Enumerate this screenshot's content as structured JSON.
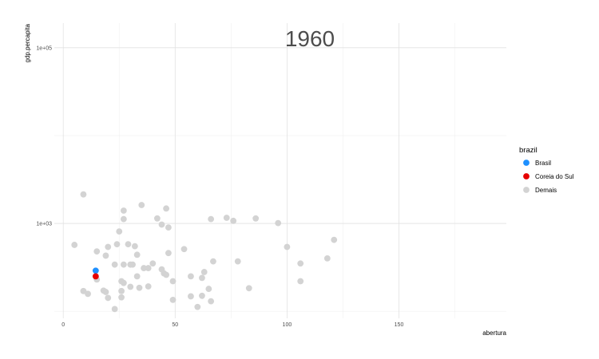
{
  "chart_data": {
    "type": "scatter",
    "title": "1960",
    "xlabel": "abertura",
    "ylabel": "gdp.percapita",
    "xlim": [
      -4,
      198
    ],
    "ylim_log10": [
      1.92,
      5.28
    ],
    "y_scale": "log10",
    "x_ticks": [
      {
        "value": 0,
        "label": "0"
      },
      {
        "value": 50,
        "label": "50"
      },
      {
        "value": 100,
        "label": "100"
      },
      {
        "value": 150,
        "label": "150"
      }
    ],
    "y_ticks": [
      {
        "value": 1000,
        "label": "1e+03"
      },
      {
        "value": 100000,
        "label": "1e+05"
      }
    ],
    "grid": true,
    "legend": {
      "title": "brazil",
      "position": "right",
      "entries": [
        {
          "label": "Brasil",
          "color": "#1E90FF"
        },
        {
          "label": "Coreia do Sul",
          "color": "#E60000"
        },
        {
          "label": "Demais",
          "color": "#D3D3D3"
        }
      ]
    },
    "series": [
      {
        "name": "Demais",
        "color": "#D3D3D3",
        "points": [
          [
            9,
            2140
          ],
          [
            35,
            1620
          ],
          [
            46,
            1480
          ],
          [
            27,
            1400
          ],
          [
            42,
            1140
          ],
          [
            27,
            1120
          ],
          [
            44,
            970
          ],
          [
            66,
            1120
          ],
          [
            73,
            1160
          ],
          [
            76,
            1070
          ],
          [
            86,
            1140
          ],
          [
            96,
            1010
          ],
          [
            47,
            900
          ],
          [
            25,
            810
          ],
          [
            5,
            570
          ],
          [
            24,
            580
          ],
          [
            29,
            580
          ],
          [
            20,
            540
          ],
          [
            32,
            550
          ],
          [
            100,
            540
          ],
          [
            121,
            650
          ],
          [
            15,
            480
          ],
          [
            54,
            510
          ],
          [
            19,
            430
          ],
          [
            33,
            440
          ],
          [
            47,
            460
          ],
          [
            67,
            370
          ],
          [
            78,
            370
          ],
          [
            106,
            350
          ],
          [
            118,
            400
          ],
          [
            23,
            340
          ],
          [
            27,
            340
          ],
          [
            30,
            340
          ],
          [
            31,
            340
          ],
          [
            40,
            350
          ],
          [
            36,
            310
          ],
          [
            38,
            310
          ],
          [
            44,
            300
          ],
          [
            45,
            270
          ],
          [
            33,
            250
          ],
          [
            57,
            250
          ],
          [
            63,
            280
          ],
          [
            46,
            260
          ],
          [
            62,
            240
          ],
          [
            26,
            220
          ],
          [
            27,
            210
          ],
          [
            49,
            220
          ],
          [
            106,
            220
          ],
          [
            15,
            230
          ],
          [
            30,
            190
          ],
          [
            34,
            185
          ],
          [
            38,
            192
          ],
          [
            65,
            180
          ],
          [
            83,
            183
          ],
          [
            9,
            170
          ],
          [
            11,
            158
          ],
          [
            18,
            172
          ],
          [
            19,
            166
          ],
          [
            26,
            170
          ],
          [
            57,
            148
          ],
          [
            62,
            150
          ],
          [
            20,
            142
          ],
          [
            26,
            144
          ],
          [
            49,
            135
          ],
          [
            66,
            130
          ],
          [
            60,
            112
          ],
          [
            23,
            106
          ]
        ]
      },
      {
        "name": "Brasil",
        "color": "#1E90FF",
        "points": [
          [
            14.5,
            290
          ]
        ]
      },
      {
        "name": "Coreia do Sul",
        "color": "#E60000",
        "points": [
          [
            14.5,
            250
          ]
        ]
      }
    ]
  }
}
